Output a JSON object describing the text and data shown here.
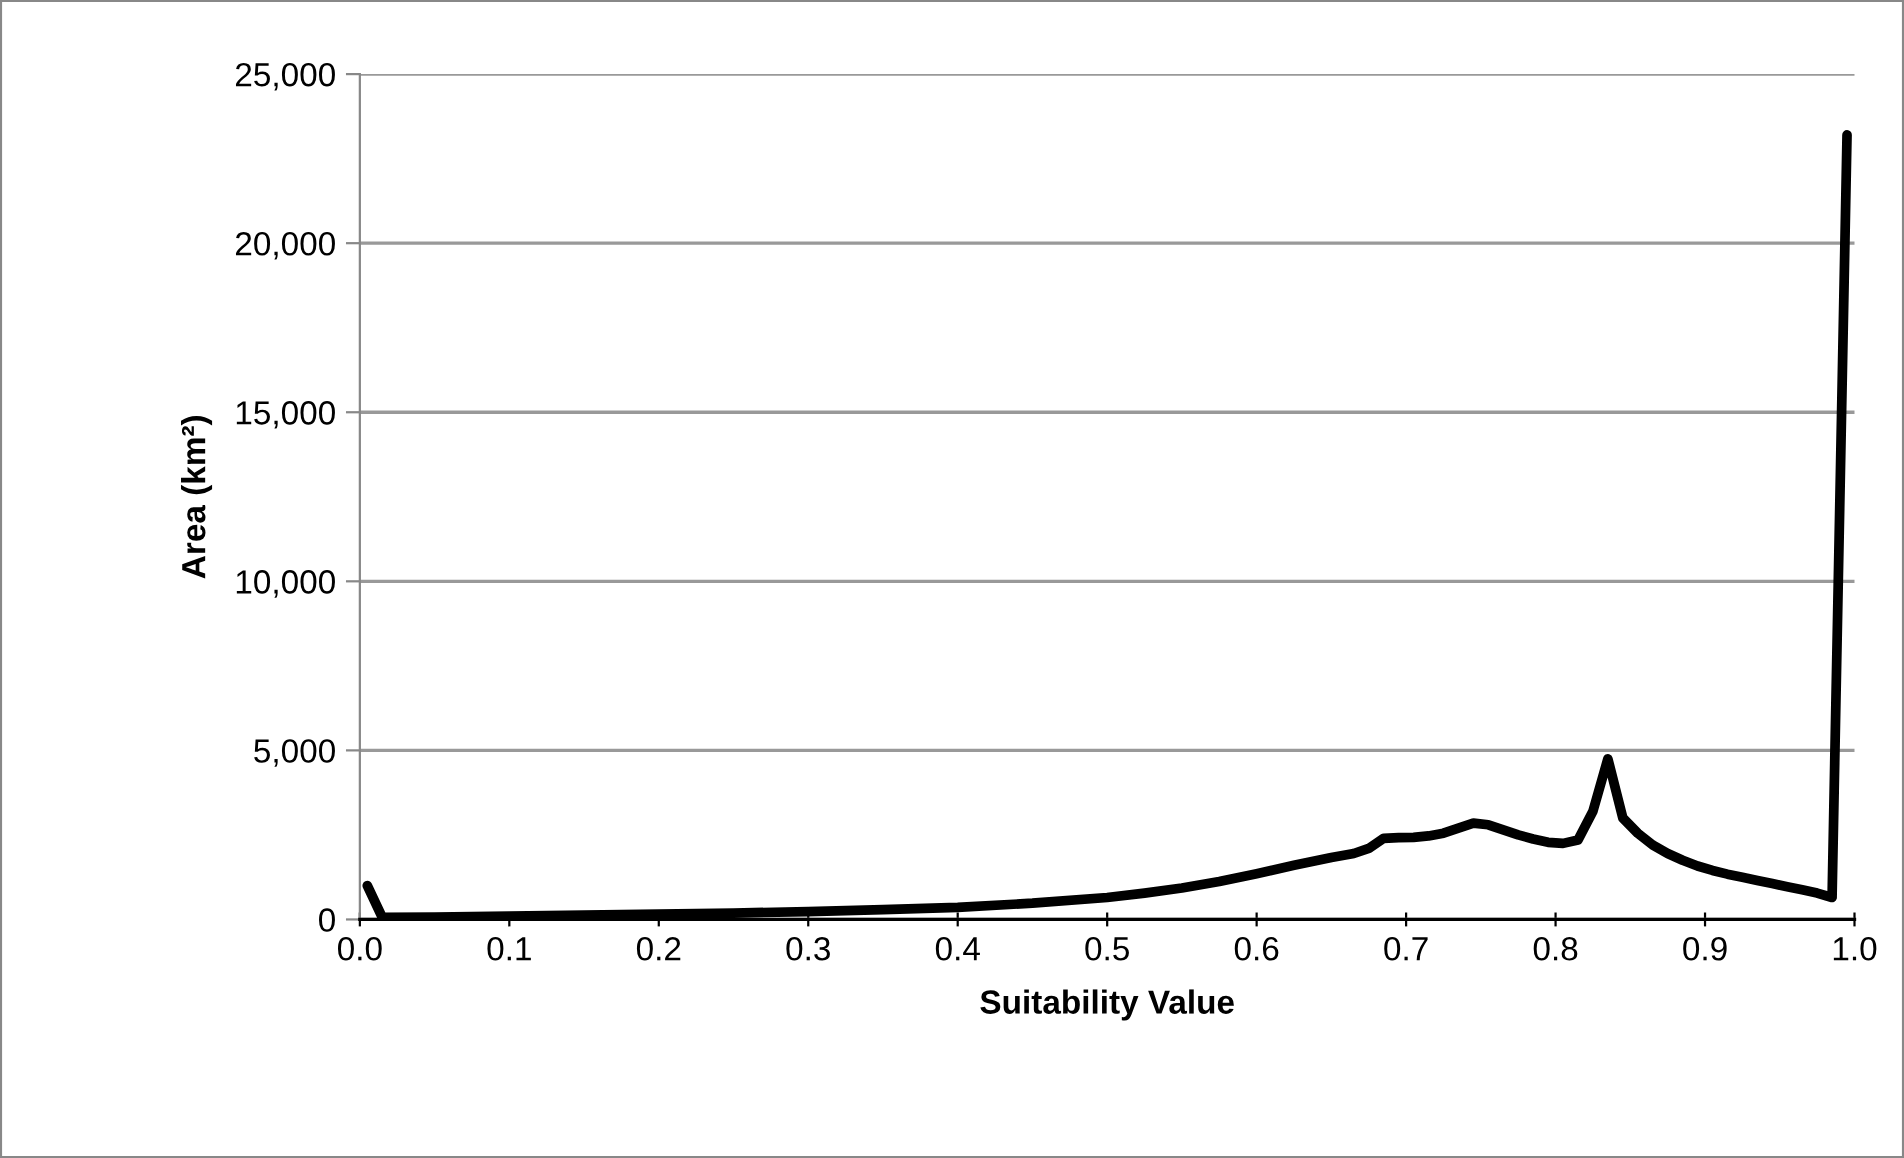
{
  "chart_data": {
    "type": "line",
    "xlabel": "Suitability Value",
    "ylabel": "Area (km²)",
    "xlim": [
      0,
      1.0
    ],
    "xticks": [
      {
        "value": 0,
        "label": "0.0"
      },
      0.1,
      0.2,
      0.3,
      0.4,
      0.5,
      0.6,
      0.7,
      0.8,
      0.9,
      {
        "value": 1.0,
        "label": "1.0"
      }
    ],
    "ylim": [
      0,
      25000
    ],
    "yticks": [
      {
        "value": 0,
        "label": "0"
      },
      {
        "value": 5000,
        "label": "5,000"
      },
      {
        "value": 10000,
        "label": "10,000"
      },
      {
        "value": 15000,
        "label": "15,000"
      },
      {
        "value": 20000,
        "label": "20,000"
      },
      {
        "value": 25000,
        "label": "25,000"
      }
    ],
    "grid": "y",
    "marker": "none",
    "line_style": "solid",
    "series": [
      {
        "color": "#000000",
        "x": [
          0.005,
          0.015,
          0.05,
          0.1,
          0.15,
          0.2,
          0.25,
          0.3,
          0.35,
          0.4,
          0.45,
          0.5,
          0.525,
          0.55,
          0.575,
          0.6,
          0.625,
          0.65,
          0.665,
          0.675,
          0.685,
          0.695,
          0.705,
          0.715,
          0.725,
          0.735,
          0.745,
          0.755,
          0.765,
          0.775,
          0.785,
          0.795,
          0.805,
          0.815,
          0.825,
          0.835,
          0.845,
          0.855,
          0.865,
          0.875,
          0.885,
          0.895,
          0.905,
          0.915,
          0.925,
          0.935,
          0.945,
          0.955,
          0.965,
          0.975,
          0.985,
          0.995
        ],
        "values": [
          1000,
          60,
          70,
          100,
          130,
          160,
          190,
          230,
          290,
          360,
          480,
          650,
          780,
          930,
          1120,
          1350,
          1600,
          1830,
          1950,
          2100,
          2400,
          2420,
          2430,
          2470,
          2550,
          2700,
          2850,
          2800,
          2650,
          2500,
          2380,
          2280,
          2250,
          2350,
          3200,
          4750,
          3000,
          2550,
          2200,
          1950,
          1750,
          1580,
          1450,
          1340,
          1250,
          1150,
          1060,
          970,
          880,
          780,
          650,
          23200
        ]
      }
    ]
  }
}
